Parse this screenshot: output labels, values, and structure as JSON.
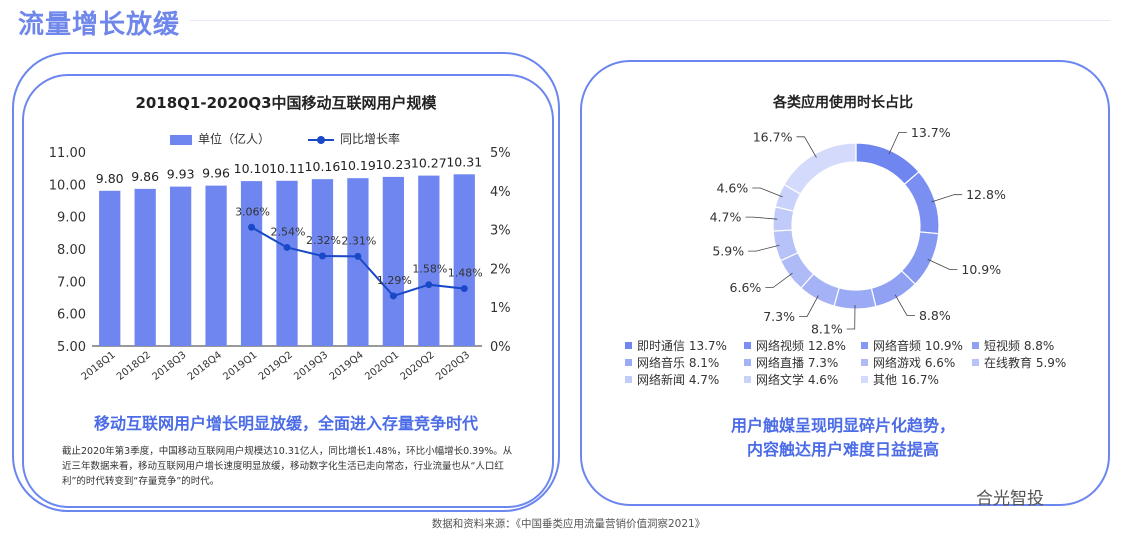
{
  "page": {
    "title": "流量增长放缓",
    "source": "数据和资料来源：《中国垂类应用流量营销价值洞察2021》",
    "brand": "合光智投"
  },
  "left_panel": {
    "title": "2018Q1-2020Q3中国移动互联网用户规模",
    "legend_bar": "单位（亿人）",
    "legend_line": "同比增长率",
    "headline": "移动互联网用户增长明显放缓，全面进入存量竞争时代",
    "description": "截止2020年第3季度，中国移动互联网用户规模达10.31亿人，同比增长1.48%，环比小幅增长0.39%。从近三年数据来看，移动互联网用户增长速度明显放缓，移动数字化生活已走向常态，行业流量也从“人口红利”的时代转变到“存量竞争”的时代。"
  },
  "right_panel": {
    "title": "各类应用使用时长占比",
    "headline_line1": "用户触媒呈现明显碎片化趋势，",
    "headline_line2": "内容触达用户难度日益提高"
  },
  "colors": {
    "accent": "#6f87ea",
    "bar": "#6f86f0",
    "line": "#1a49c8",
    "card_border": "#6b86ee",
    "headline": "#4b6ce6"
  },
  "chart_data": [
    {
      "type": "bar",
      "title": "2018Q1-2020Q3中国移动互联网用户规模",
      "categories": [
        "2018Q1",
        "2018Q2",
        "2018Q3",
        "2018Q4",
        "2019Q1",
        "2019Q2",
        "2019Q3",
        "2019Q4",
        "2020Q1",
        "2020Q2",
        "2020Q3"
      ],
      "series": [
        {
          "name": "单位（亿人）",
          "type": "bar",
          "axis": "left",
          "values": [
            9.8,
            9.86,
            9.93,
            9.96,
            10.1,
            10.11,
            10.16,
            10.19,
            10.23,
            10.27,
            10.31
          ],
          "labels": [
            "9.80",
            "9.86",
            "9.93",
            "9.96",
            "10.10",
            "10.11",
            "10.16",
            "10.19",
            "10.23",
            "10.27",
            "10.31"
          ]
        },
        {
          "name": "同比增长率",
          "type": "line",
          "axis": "right",
          "values": [
            null,
            null,
            null,
            null,
            3.06,
            2.54,
            2.32,
            2.31,
            1.29,
            1.58,
            1.48
          ],
          "labels": [
            "",
            "",
            "",
            "",
            "3.06%",
            "2.54%",
            "2.32%",
            "2.31%",
            "1.29%",
            "1.58%",
            "1.48%"
          ]
        }
      ],
      "y_left": {
        "range": [
          5.0,
          11.0
        ],
        "ticks": [
          "5.00",
          "6.00",
          "7.00",
          "8.00",
          "9.00",
          "10.00",
          "11.00"
        ]
      },
      "y_right": {
        "range": [
          0,
          5
        ],
        "ticks": [
          "0%",
          "1%",
          "2%",
          "3%",
          "4%",
          "5%"
        ]
      },
      "grid": false,
      "legend_position": "top"
    },
    {
      "type": "pie",
      "title": "各类应用使用时长占比",
      "donut": true,
      "slices": [
        {
          "name": "即时通信",
          "value": 13.7,
          "label": "13.7%",
          "legend": "即时通信 13.7%",
          "color": "#6f86f0"
        },
        {
          "name": "网络视频",
          "value": 12.8,
          "label": "12.8%",
          "legend": "网络视频 12.8%",
          "color": "#7a8ff1"
        },
        {
          "name": "网络音频",
          "value": 10.9,
          "label": "10.9%",
          "legend": "网络音频 10.9%",
          "color": "#8598f2"
        },
        {
          "name": "短视频",
          "value": 8.8,
          "label": "8.8%",
          "legend": "短视频 8.8%",
          "color": "#90a1f4"
        },
        {
          "name": "网络音乐",
          "value": 8.1,
          "label": "8.1%",
          "legend": "网络音乐 8.1%",
          "color": "#9baaf5"
        },
        {
          "name": "网络直播",
          "value": 7.3,
          "label": "7.3%",
          "legend": "网络直播 7.3%",
          "color": "#a5b3f6"
        },
        {
          "name": "网络游戏",
          "value": 6.6,
          "label": "6.6%",
          "legend": "网络游戏 6.6%",
          "color": "#aebbf7"
        },
        {
          "name": "在线教育",
          "value": 5.9,
          "label": "5.9%",
          "legend": "在线教育 5.9%",
          "color": "#b7c3f8"
        },
        {
          "name": "网络新闻",
          "value": 4.7,
          "label": "4.7%",
          "legend": "网络新闻 4.7%",
          "color": "#c0cbf9"
        },
        {
          "name": "网络文学",
          "value": 4.6,
          "label": "4.6%",
          "legend": "网络文学 4.6%",
          "color": "#c9d2fa"
        },
        {
          "name": "其他",
          "value": 16.7,
          "label": "16.7%",
          "legend": "其他 16.7%",
          "color": "#d3dafb"
        }
      ],
      "legend_position": "bottom"
    }
  ]
}
